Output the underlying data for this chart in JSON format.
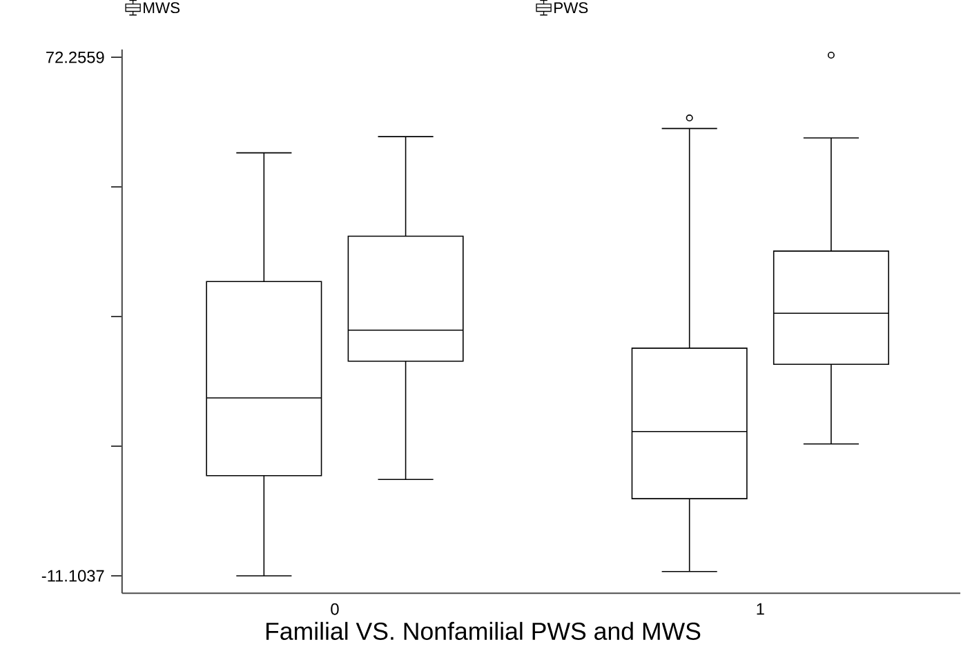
{
  "chart_data": {
    "type": "box",
    "xlabel": "Familial VS. Nonfamilial PWS and MWS",
    "categories": [
      "0",
      "1"
    ],
    "series": [
      {
        "name": "MWS",
        "color": "#000000",
        "boxes": [
          {
            "low": -11.1,
            "q1": 5.0,
            "median": 17.5,
            "q3": 36.2,
            "high": 56.9
          },
          {
            "low": -10.4,
            "q1": 1.3,
            "median": 12.1,
            "q3": 25.5,
            "high": 60.8,
            "outliers": [
              62.5
            ]
          }
        ]
      },
      {
        "name": "PWS",
        "color": "#000000",
        "boxes": [
          {
            "low": 4.4,
            "q1": 23.4,
            "median": 28.4,
            "q3": 43.5,
            "high": 59.5
          },
          {
            "low": 10.1,
            "q1": 22.9,
            "median": 31.1,
            "q3": 41.1,
            "high": 59.3,
            "outliers": [
              72.6
            ]
          }
        ]
      }
    ],
    "ylim": [
      -13.9,
      73.5
    ],
    "yticks": [
      -11.1037,
      {
        "value": 9.736,
        "label": null
      },
      {
        "value": 30.576,
        "label": null
      },
      {
        "value": 51.416,
        "label": null
      },
      72.2559
    ],
    "legend": "top",
    "grid": false
  }
}
